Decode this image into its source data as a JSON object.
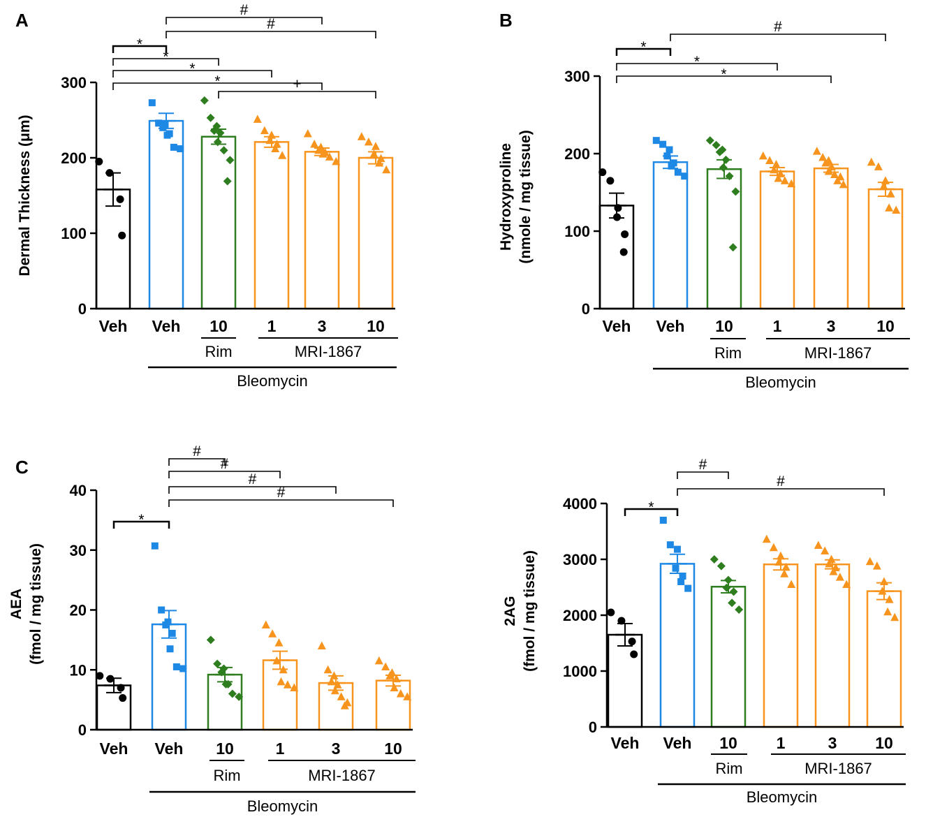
{
  "colors": {
    "veh": "#000000",
    "bleo_veh": "#1e88e5",
    "rim": "#2e7d1f",
    "mri": "#f7941d"
  },
  "chart_data": [
    {
      "panel": "A",
      "type": "bar",
      "ylabel": "Dermal Thickness (μm)",
      "ylim": [
        0,
        300
      ],
      "yticks": [
        0,
        100,
        200,
        300
      ],
      "categories": [
        "Veh",
        "Veh",
        "10",
        "1",
        "3",
        "10"
      ],
      "series_colors": [
        "veh",
        "bleo_veh",
        "rim",
        "mri",
        "mri",
        "mri"
      ],
      "markers": [
        "circle",
        "square",
        "diamond",
        "triangle",
        "triangle",
        "triangle"
      ],
      "means": [
        158,
        249,
        228,
        221,
        208,
        200
      ],
      "sem": [
        22,
        10,
        10,
        7,
        5,
        8
      ],
      "points": [
        [
          195,
          180,
          145,
          97
        ],
        [
          273,
          246,
          244,
          240,
          232,
          230,
          214,
          212
        ],
        [
          276,
          253,
          242,
          236,
          233,
          221,
          210,
          197,
          169
        ],
        [
          251,
          236,
          230,
          223,
          218,
          212,
          203
        ],
        [
          232,
          218,
          214,
          210,
          207,
          205,
          201,
          195
        ],
        [
          228,
          221,
          215,
          205,
          199,
          193,
          184
        ]
      ],
      "labels": {
        "rim": "Rim",
        "mri": "MRI-1867",
        "bleo": "Bleomycin"
      },
      "sig": [
        {
          "from": 0,
          "to": 1,
          "mark": "*"
        },
        {
          "from": 1,
          "to": 4,
          "mark": "#"
        },
        {
          "from": 1,
          "to": 5,
          "mark": "#"
        },
        {
          "from": 0,
          "to": 2,
          "mark": "*"
        },
        {
          "from": 0,
          "to": 3,
          "mark": "*"
        },
        {
          "from": 0,
          "to": 4,
          "mark": "*"
        },
        {
          "from": 2,
          "to": 5,
          "mark": "+"
        }
      ]
    },
    {
      "panel": "B",
      "type": "bar",
      "ylabel": [
        "Hydroxyproline",
        "(nmole / mg tissue)"
      ],
      "ylim": [
        0,
        300
      ],
      "yticks": [
        0,
        100,
        200,
        300
      ],
      "categories": [
        "Veh",
        "Veh",
        "10",
        "1",
        "3",
        "10"
      ],
      "series_colors": [
        "veh",
        "bleo_veh",
        "rim",
        "mri",
        "mri",
        "mri"
      ],
      "markers": [
        "circle",
        "square",
        "diamond",
        "triangle",
        "triangle",
        "triangle"
      ],
      "means": [
        133,
        189,
        180,
        177,
        181,
        154
      ],
      "sem": [
        16,
        8,
        12,
        5,
        5,
        9
      ],
      "points": [
        [
          176,
          165,
          130,
          118,
          96,
          73
        ],
        [
          217,
          212,
          205,
          197,
          188,
          184,
          176,
          171
        ],
        [
          217,
          211,
          205,
          202,
          192,
          182,
          171,
          151,
          79
        ],
        [
          197,
          191,
          186,
          179,
          174,
          168,
          165,
          161
        ],
        [
          203,
          195,
          191,
          188,
          183,
          177,
          173,
          170,
          165,
          160
        ],
        [
          189,
          183,
          165,
          158,
          148,
          130,
          127
        ]
      ],
      "labels": {
        "rim": "Rim",
        "mri": "MRI-1867",
        "bleo": "Bleomycin"
      },
      "sig": [
        {
          "from": 0,
          "to": 1,
          "mark": "*"
        },
        {
          "from": 1,
          "to": 5,
          "mark": "#"
        },
        {
          "from": 0,
          "to": 3,
          "mark": "*"
        },
        {
          "from": 0,
          "to": 4,
          "mark": "*"
        }
      ]
    },
    {
      "panel": "C",
      "type": "bar",
      "ylabel": [
        "AEA",
        "(fmol / mg tissue)"
      ],
      "ylim": [
        0,
        40
      ],
      "yticks": [
        0,
        10,
        20,
        30,
        40
      ],
      "categories": [
        "Veh",
        "Veh",
        "10",
        "1",
        "3",
        "10"
      ],
      "series_colors": [
        "veh",
        "bleo_veh",
        "rim",
        "mri",
        "mri",
        "mri"
      ],
      "markers": [
        "circle",
        "square",
        "diamond",
        "triangle",
        "triangle",
        "triangle"
      ],
      "means": [
        7.4,
        17.6,
        9.2,
        11.6,
        7.8,
        8.2
      ],
      "sem": [
        1.2,
        2.3,
        1.2,
        1.5,
        1.2,
        0.9
      ],
      "points": [
        [
          9.0,
          8.5,
          7.0,
          5.3
        ],
        [
          30.7,
          20.0,
          18.0,
          17.5,
          16.1,
          13.5,
          10.5,
          10.2
        ],
        [
          15.0,
          11.0,
          10.2,
          9.6,
          7.6,
          7.6,
          6.0,
          5.5
        ],
        [
          17.5,
          16.0,
          14.5,
          11.5,
          10.0,
          8.0,
          7.5,
          7.0
        ],
        [
          14.0,
          10.0,
          9.0,
          8.0,
          7.5,
          6.5,
          5.5,
          4.5,
          4.0
        ],
        [
          11.5,
          10.5,
          9.5,
          9.0,
          8.5,
          7.0,
          6.0,
          5.5
        ]
      ],
      "labels": {
        "rim": "Rim",
        "mri": "MRI-1867",
        "bleo": "Bleomycin"
      },
      "sig": [
        {
          "from": 1,
          "to": 2,
          "mark": "#"
        },
        {
          "from": 1,
          "to": 3,
          "mark": "#"
        },
        {
          "from": 1,
          "to": 4,
          "mark": "#"
        },
        {
          "from": 1,
          "to": 5,
          "mark": "#"
        },
        {
          "from": 0,
          "to": 1,
          "mark": "*"
        }
      ]
    },
    {
      "panel": "",
      "type": "bar",
      "ylabel": [
        "2AG",
        "(fmol / mg tissue)"
      ],
      "ylim": [
        0,
        4000
      ],
      "yticks": [
        0,
        1000,
        2000,
        3000,
        4000
      ],
      "categories": [
        "Veh",
        "Veh",
        "10",
        "1",
        "3",
        "10"
      ],
      "series_colors": [
        "veh",
        "bleo_veh",
        "rim",
        "mri",
        "mri",
        "mri"
      ],
      "markers": [
        "circle",
        "square",
        "diamond",
        "triangle",
        "triangle",
        "triangle"
      ],
      "means": [
        1650,
        2920,
        2510,
        2910,
        2910,
        2430
      ],
      "sem": [
        200,
        170,
        110,
        100,
        80,
        150
      ],
      "points": [
        [
          2050,
          1900,
          1530,
          1300
        ],
        [
          3700,
          3260,
          3180,
          2840,
          2700,
          2600,
          2480
        ],
        [
          3000,
          2880,
          2630,
          2490,
          2420,
          2220,
          2100
        ],
        [
          3360,
          3210,
          3060,
          2950,
          2860,
          2740,
          2550
        ],
        [
          3250,
          3150,
          3000,
          2920,
          2850,
          2780,
          2680,
          2550
        ],
        [
          2960,
          2880,
          2600,
          2430,
          2280,
          2060,
          1960
        ]
      ],
      "labels": {
        "rim": "Rim",
        "mri": "MRI-1867",
        "bleo": "Bleomycin"
      },
      "sig": [
        {
          "from": 1,
          "to": 2,
          "mark": "#"
        },
        {
          "from": 1,
          "to": 5,
          "mark": "#"
        },
        {
          "from": 0,
          "to": 1,
          "mark": "*"
        }
      ]
    }
  ]
}
